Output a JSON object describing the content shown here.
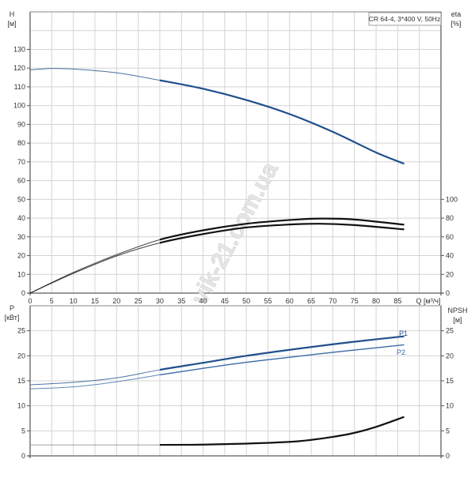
{
  "chart_data": [
    {
      "type": "line",
      "title": "CR 64-4, 3*400 V, 50Hz",
      "xlabel": "Q [м³/ч]",
      "ylabel": "H [м]",
      "ylabel_name": "H",
      "ylabel_unit": "[м]",
      "y2label_name": "eta",
      "y2label_unit": "[%]",
      "xlim": [
        0,
        95
      ],
      "ylim": [
        0,
        150
      ],
      "y2lim": [
        0,
        300
      ],
      "x_ticks": [
        0,
        5,
        10,
        15,
        20,
        25,
        30,
        35,
        40,
        45,
        50,
        55,
        60,
        65,
        70,
        75,
        80,
        85
      ],
      "y_ticks": [
        0,
        10,
        20,
        30,
        40,
        50,
        60,
        70,
        80,
        90,
        100,
        110,
        120,
        130
      ],
      "y2_ticks": [
        0,
        20,
        40,
        60,
        80,
        100
      ],
      "grid": true,
      "legend": "top-right",
      "series": [
        {
          "name": "H",
          "axis": "left",
          "color": "#1f4f8c",
          "x": [
            0,
            5,
            10,
            20,
            30,
            40,
            50,
            60,
            70,
            80,
            86.5
          ],
          "y": [
            119,
            119.8,
            119.5,
            117.5,
            113.5,
            109,
            103,
            95.5,
            86,
            75,
            69
          ]
        },
        {
          "name": "eta upper",
          "axis": "right",
          "color": "#111111",
          "x": [
            0,
            10,
            20,
            30,
            40,
            50,
            60,
            67,
            75,
            86.5
          ],
          "y": [
            0,
            22,
            41,
            57,
            67,
            74,
            78,
            79.5,
            78.5,
            73
          ]
        },
        {
          "name": "eta lower",
          "axis": "right",
          "color": "#111111",
          "x": [
            0,
            10,
            20,
            30,
            40,
            50,
            60,
            67,
            75,
            86.5
          ],
          "y": [
            0,
            21,
            39.6,
            53.6,
            63,
            70,
            73.2,
            74,
            72.6,
            68
          ]
        }
      ]
    },
    {
      "type": "line",
      "ylabel_name": "P",
      "ylabel_unit": "[кВт]",
      "y2label_name": "NPSH",
      "y2label_unit": "[м]",
      "xlim": [
        0,
        95
      ],
      "ylim": [
        0,
        30
      ],
      "y2lim": [
        0,
        30
      ],
      "y_ticks": [
        0,
        5,
        10,
        15,
        20,
        25
      ],
      "y2_ticks": [
        0,
        5,
        10,
        15,
        20,
        25
      ],
      "grid": true,
      "series": [
        {
          "name": "P1",
          "axis": "left",
          "color": "#1f4f8c",
          "x": [
            0,
            10,
            20,
            30,
            40,
            50,
            60,
            70,
            80,
            86.5
          ],
          "y": [
            14.2,
            14.7,
            15.6,
            17.2,
            18.6,
            20,
            21.2,
            22.3,
            23.3,
            23.9
          ]
        },
        {
          "name": "P2",
          "axis": "left",
          "color": "#3a6aa8",
          "x": [
            0,
            10,
            20,
            30,
            40,
            50,
            60,
            70,
            80,
            86.5
          ],
          "y": [
            13.4,
            13.8,
            14.8,
            16.2,
            17.5,
            18.7,
            19.7,
            20.7,
            21.6,
            22.2
          ]
        },
        {
          "name": "NPSH",
          "axis": "right",
          "color": "#111111",
          "x": [
            0,
            30,
            40,
            50,
            60,
            65,
            70,
            75,
            80,
            86.5
          ],
          "y": [
            2.2,
            2.2,
            2.25,
            2.45,
            2.8,
            3.2,
            3.8,
            4.6,
            5.8,
            7.8
          ]
        }
      ]
    }
  ],
  "watermark": "vik-21.com.ua"
}
